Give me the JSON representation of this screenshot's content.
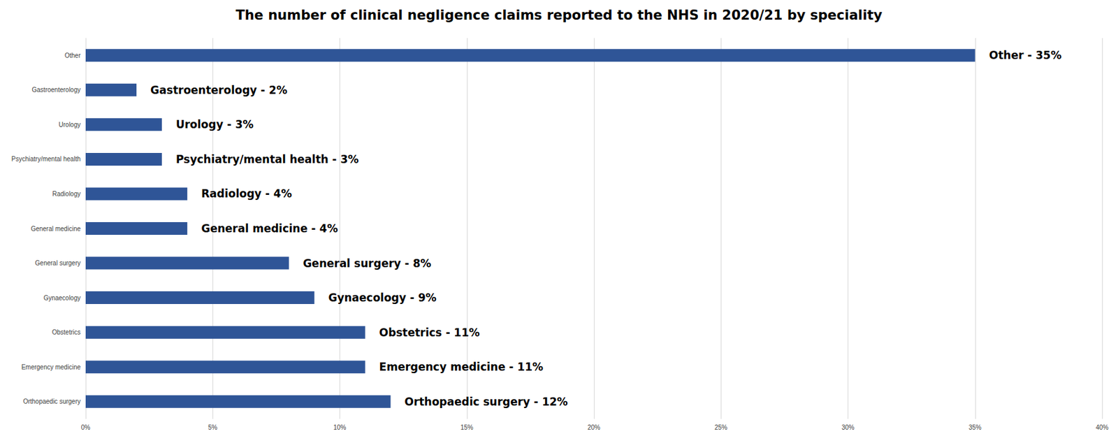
{
  "chart_data": {
    "type": "bar",
    "orientation": "horizontal",
    "title": "The number of clinical negligence claims reported to the NHS in 2020/21 by speciality",
    "categories": [
      "Other",
      "Gastroenterology",
      "Urology",
      "Psychiatry/mental health",
      "Radiology",
      "General medicine",
      "General surgery",
      "Gynaecology",
      "Obstetrics",
      "Emergency medicine",
      "Orthopaedic surgery"
    ],
    "values": [
      35,
      2,
      3,
      3,
      4,
      4,
      8,
      9,
      11,
      11,
      12
    ],
    "value_labels": [
      "Other - 35%",
      "Gastroenterology - 2%",
      "Urology - 3%",
      "Psychiatry/mental health - 3%",
      "Radiology - 4%",
      "General medicine - 4%",
      "General surgery - 8%",
      "Gynaecology - 9%",
      "Obstetrics - 11%",
      "Emergency medicine - 11%",
      "Orthopaedic surgery - 12%"
    ],
    "color": "#2f5597",
    "xlim": [
      0,
      40
    ],
    "xticks": [
      {
        "value": 0,
        "label": "0%"
      },
      {
        "value": 5,
        "label": "5%"
      },
      {
        "value": 10,
        "label": "10%"
      },
      {
        "value": 15,
        "label": "15%"
      },
      {
        "value": 20,
        "label": "20%"
      },
      {
        "value": 25,
        "label": "25%"
      },
      {
        "value": 30,
        "label": "30%"
      },
      {
        "value": 35,
        "label": "35%"
      },
      {
        "value": 40,
        "label": "40%"
      }
    ],
    "grid": true,
    "data_labels": true
  }
}
